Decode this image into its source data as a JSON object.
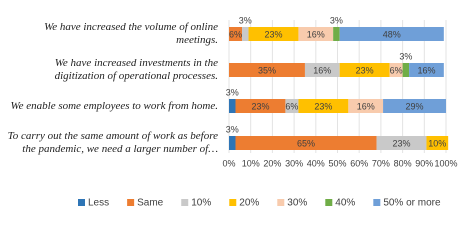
{
  "chart_data": {
    "type": "stacked-bar-horizontal",
    "categories": [
      "We have increased the volume of online meetings.",
      "We have increased investments in the digitization of operational processes.",
      "We enable some employees to work from home.",
      "To carry out the same amount of work as before the pandemic, we need a larger number of…"
    ],
    "series": [
      {
        "name": "Less",
        "color": "#2e75b6",
        "values": [
          null,
          null,
          3,
          3
        ],
        "value_labels": [
          null,
          null,
          "3%",
          "3%"
        ]
      },
      {
        "name": "Same",
        "color": "#ed7d31",
        "values": [
          6,
          35,
          23,
          65
        ],
        "value_labels": [
          "6%",
          "35%",
          "23%",
          "65%"
        ]
      },
      {
        "name": "10%",
        "color": "#c9c9c9",
        "values": [
          3,
          16,
          6,
          23
        ],
        "value_labels": [
          "3%",
          "16%",
          "6%",
          "23%"
        ]
      },
      {
        "name": "20%",
        "color": "#ffc000",
        "values": [
          23,
          23,
          23,
          10
        ],
        "value_labels": [
          "23%",
          "23%",
          "23%",
          "10%"
        ]
      },
      {
        "name": "30%",
        "color": "#f8cbad",
        "values": [
          16,
          6,
          16,
          null
        ],
        "value_labels": [
          "16%",
          "6%",
          "16%",
          null
        ]
      },
      {
        "name": "40%",
        "color": "#70ad47",
        "values": [
          3,
          3,
          null,
          null
        ],
        "value_labels": [
          "3%",
          "3%",
          null,
          null
        ]
      },
      {
        "name": "50% or more",
        "color": "#6f9fd8",
        "values": [
          48,
          16,
          29,
          null
        ],
        "value_labels": [
          "48%",
          "16%",
          "29%",
          null
        ]
      }
    ],
    "xlim": [
      0,
      100
    ],
    "xticks": [
      {
        "value": 0,
        "label": "0%"
      },
      {
        "value": 10,
        "label": "10%"
      },
      {
        "value": 20,
        "label": "20%"
      },
      {
        "value": 30,
        "label": "30%"
      },
      {
        "value": 40,
        "label": "40%"
      },
      {
        "value": 50,
        "label": "50%"
      },
      {
        "value": 60,
        "label": "60%"
      },
      {
        "value": 70,
        "label": "70%"
      },
      {
        "value": 80,
        "label": "80%"
      },
      {
        "value": 90,
        "label": "90%"
      },
      {
        "value": 100,
        "label": "100%"
      }
    ],
    "grid": true,
    "legend": "bottom"
  }
}
